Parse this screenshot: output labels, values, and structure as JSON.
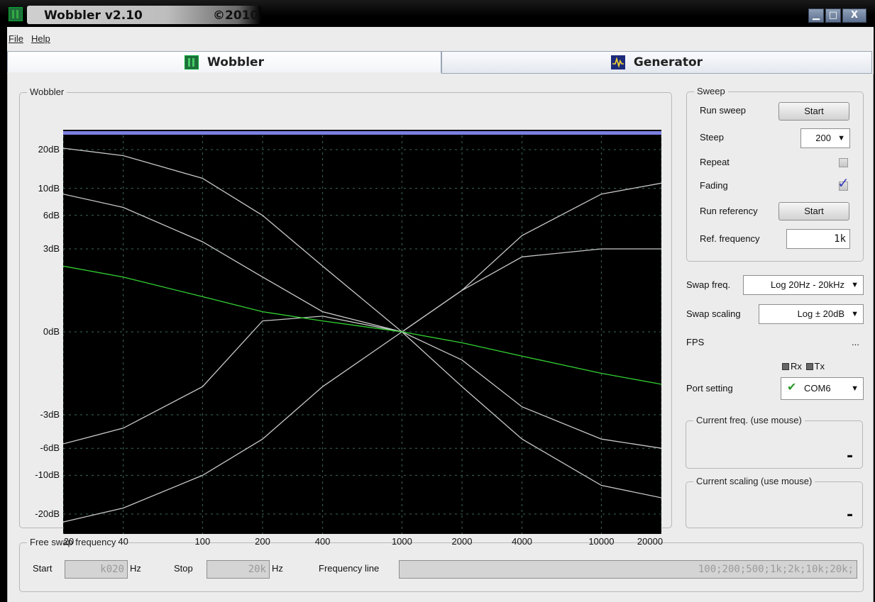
{
  "window": {
    "title": "Wobbler v2.10",
    "copyright": "©2010",
    "min_glyph": "▁",
    "max_glyph": "□",
    "close_glyph": "X"
  },
  "menu": {
    "file": "File",
    "help": "Help"
  },
  "tabs": [
    {
      "label": "Wobbler"
    },
    {
      "label": "Generator"
    }
  ],
  "wobbler_group": {
    "label": "Wobbler"
  },
  "chart_data": {
    "type": "line",
    "x_scale": "log",
    "y_scale": "log-dB",
    "xlim": [
      20,
      20000
    ],
    "ylim": [
      -25,
      25
    ],
    "x_ticks": [
      "20",
      "40",
      "100",
      "200",
      "400",
      "1000",
      "2000",
      "4000",
      "10000",
      "20000"
    ],
    "y_ticks": [
      "20dB",
      "10dB",
      "6dB",
      "3dB",
      "0dB",
      "-3dB",
      "-6dB",
      "-10dB",
      "-20dB"
    ],
    "grid": true,
    "background": "#000000",
    "series": [
      {
        "color": "#c8c8c8",
        "x": [
          20,
          40,
          100,
          200,
          400,
          1000,
          2000,
          4000,
          10000,
          20000
        ],
        "y": [
          20.5,
          18,
          12,
          6,
          2,
          0,
          -1.5,
          -5,
          -12,
          -15
        ]
      },
      {
        "color": "#c8c8c8",
        "x": [
          20,
          40,
          100,
          200,
          400,
          1000,
          2000,
          4000,
          10000,
          20000
        ],
        "y": [
          9,
          7,
          3.5,
          1.5,
          0.4,
          0,
          -0.6,
          -2.5,
          -5,
          -6
        ]
      },
      {
        "color": "#c8c8c8",
        "x": [
          20,
          40,
          100,
          200,
          400,
          1000,
          2000,
          4000,
          10000,
          20000
        ],
        "y": [
          -5.5,
          -4,
          -1.5,
          0.2,
          0.3,
          0,
          1,
          4,
          9,
          11
        ]
      },
      {
        "color": "#c8c8c8",
        "x": [
          20,
          40,
          100,
          200,
          400,
          1000,
          2000,
          4000,
          10000,
          20000
        ],
        "y": [
          -23,
          -18,
          -10,
          -5,
          -1.5,
          0,
          1,
          2.5,
          3,
          3
        ]
      },
      {
        "color": "#32d232",
        "x": [
          20,
          40,
          100,
          200,
          400,
          1000,
          2000,
          4000,
          10000,
          20000
        ],
        "y": [
          2,
          1.5,
          0.8,
          0.4,
          0.2,
          0,
          -0.2,
          -0.5,
          -1,
          -1.4
        ]
      }
    ]
  },
  "sweep": {
    "label": "Sweep",
    "run_sweep_label": "Run sweep",
    "run_sweep_button": "Start",
    "steep_label": "Steep",
    "steep_value": "200",
    "repeat_label": "Repeat",
    "fading_label": "Fading",
    "run_reference_label": "Run referency",
    "run_reference_button": "Start",
    "ref_freq_label": "Ref. frequency",
    "ref_freq_value": "1k"
  },
  "swap_freq": {
    "label": "Swap freq.",
    "value": "Log 20Hz - 20kHz"
  },
  "swap_scaling": {
    "label": "Swap scaling",
    "value": "Log ± 20dB"
  },
  "fps": {
    "label": "FPS",
    "value": "..."
  },
  "leds": {
    "rx": "Rx",
    "tx": "Tx"
  },
  "port": {
    "label": "Port setting",
    "value": "COM6"
  },
  "current_freq": {
    "label": "Current freq. (use mouse)",
    "value": "-"
  },
  "current_scaling": {
    "label": "Current scaling (use mouse)",
    "value": "-"
  },
  "free_swap": {
    "label": "Free swap frequency",
    "start_label": "Start",
    "start_value": "k020",
    "start_unit": "Hz",
    "stop_label": "Stop",
    "stop_value": "20k",
    "stop_unit": "Hz",
    "freq_line_label": "Frequency line",
    "freq_line_value": "100;200;500;1k;2k;10k;20k;"
  },
  "arrow_glyph": "▼",
  "check_glyph": "✔",
  "fading_check_glyph": "✓"
}
